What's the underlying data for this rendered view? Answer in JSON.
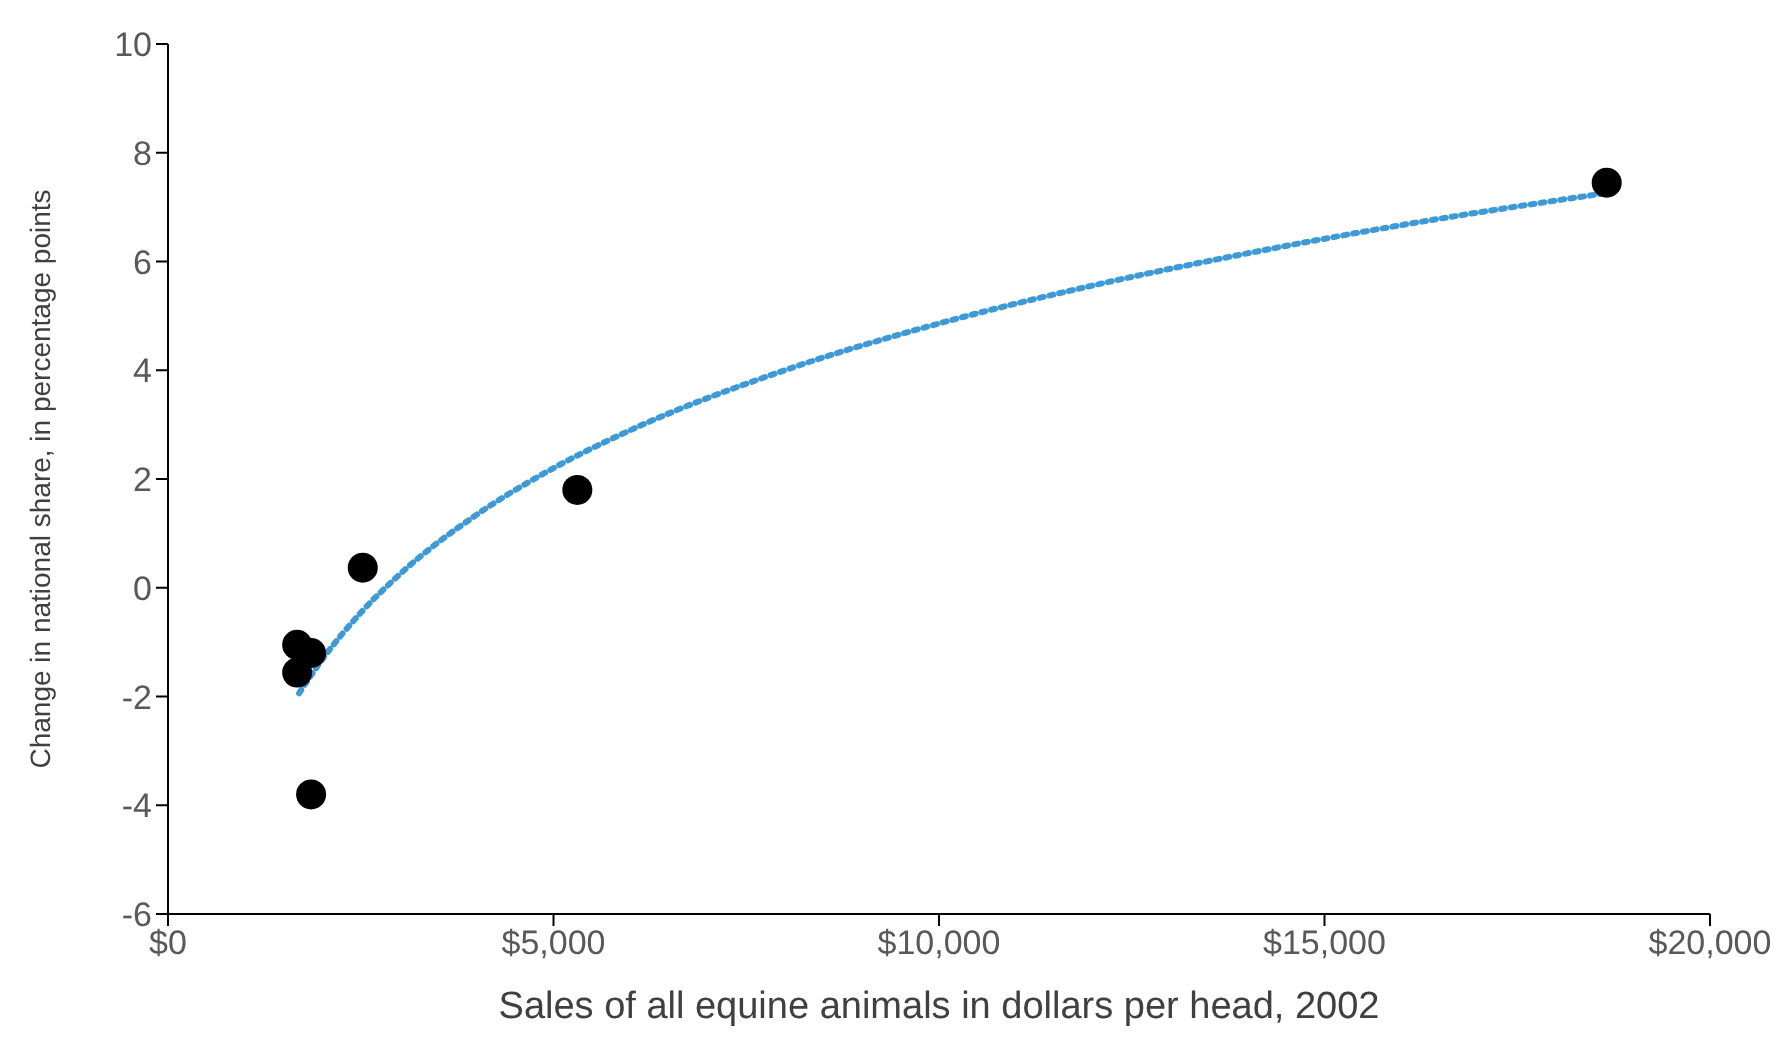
{
  "chart_data": {
    "type": "scatter",
    "xlabel": "Sales of all equine animals in dollars per head, 2002",
    "ylabel": "Change in national share, in percentage points",
    "xlim": [
      0,
      20000
    ],
    "xticks": [
      {
        "value": 0,
        "label": "$0"
      },
      {
        "value": 5000,
        "label": "$5,000"
      },
      {
        "value": 10000,
        "label": "$10,000"
      },
      {
        "value": 15000,
        "label": "$15,000"
      },
      {
        "value": 20000,
        "label": "$20,000"
      }
    ],
    "ylim": [
      -6,
      10
    ],
    "yticks": [
      -6,
      -4,
      -2,
      0,
      2,
      4,
      6,
      8,
      10
    ],
    "grid": false,
    "legend": false,
    "series": [
      {
        "color": "#000000",
        "marker": "circle",
        "x": [
          1675,
          1856,
          1675,
          1856,
          2526,
          5309,
          18660
        ],
        "values": [
          -1.05,
          -1.2,
          -1.56,
          -3.8,
          0.37,
          1.8,
          7.45
        ]
      },
      {
        "type": "line",
        "color": "#3d9ad6",
        "marker": "none",
        "line_style": "dotted",
        "x": [
          1700,
          2000,
          2500,
          3000,
          4000,
          5000,
          6000,
          8000,
          10000,
          12000,
          14000,
          16000,
          18660
        ],
        "values": [
          -1.94,
          -1.32,
          -0.46,
          0.24,
          1.34,
          2.2,
          2.9,
          4.0,
          4.86,
          5.56,
          6.15,
          6.67,
          7.26
        ]
      }
    ]
  }
}
